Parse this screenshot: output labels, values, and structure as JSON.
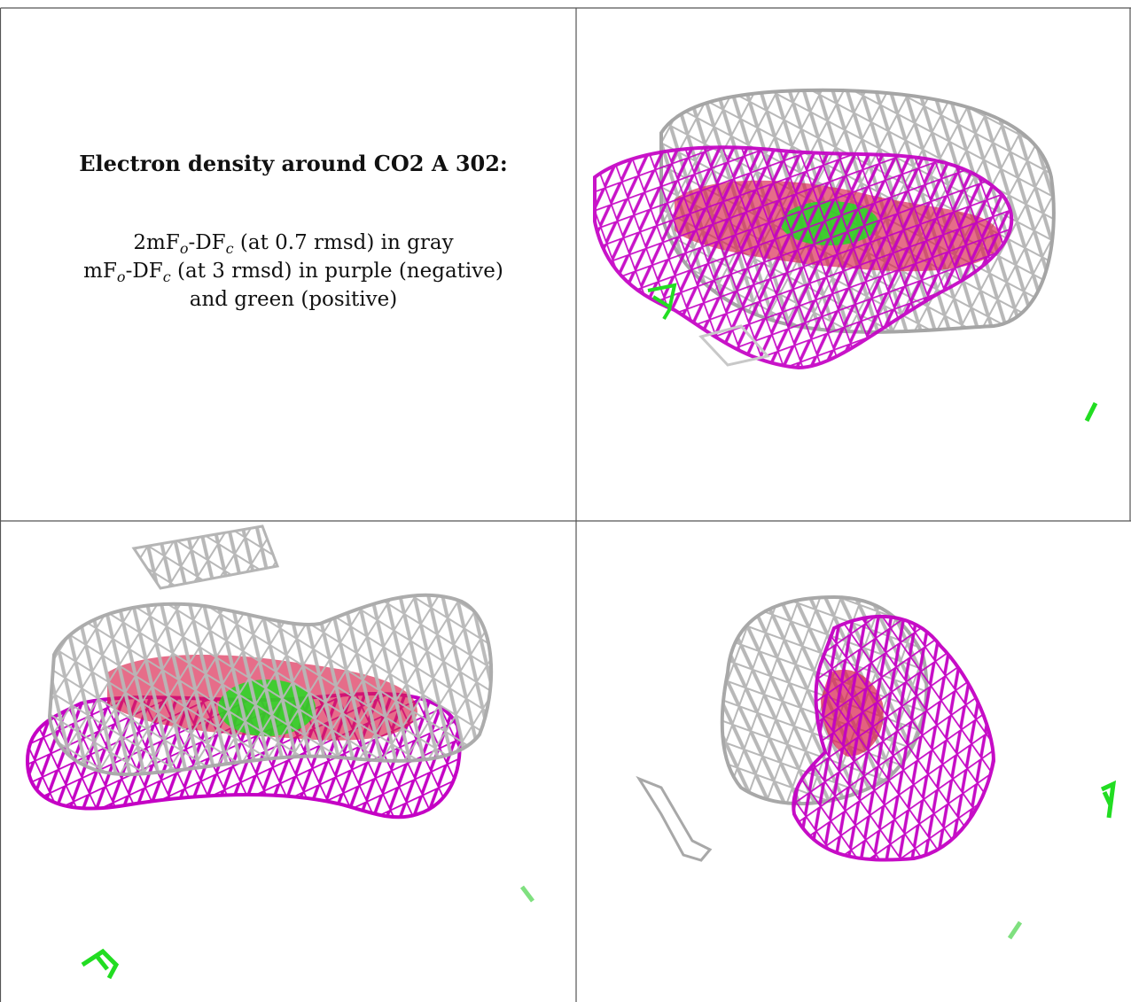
{
  "caption": {
    "title": "Electron density around CO2 A 302:",
    "line1": {
      "a": "2mF",
      "sub1": "o",
      "b": "-DF",
      "sub2": "c",
      "rest": " (at 0.7 rmsd) in gray"
    },
    "line2": {
      "a": "mF",
      "sub1": "o",
      "b": "-DF",
      "sub2": "c",
      "rest": " (at 3 rmsd) in purple (negative)"
    },
    "line3": "and green (positive)"
  },
  "colors": {
    "grid_line": "#555555",
    "density_2fofc": "#b8b8b8",
    "negative_fofc": "#c400c4",
    "positive_fofc": "#22dd22",
    "ligand": "#d81e4a"
  },
  "panels": [
    "top-right-view",
    "bottom-left-view",
    "bottom-right-view"
  ]
}
